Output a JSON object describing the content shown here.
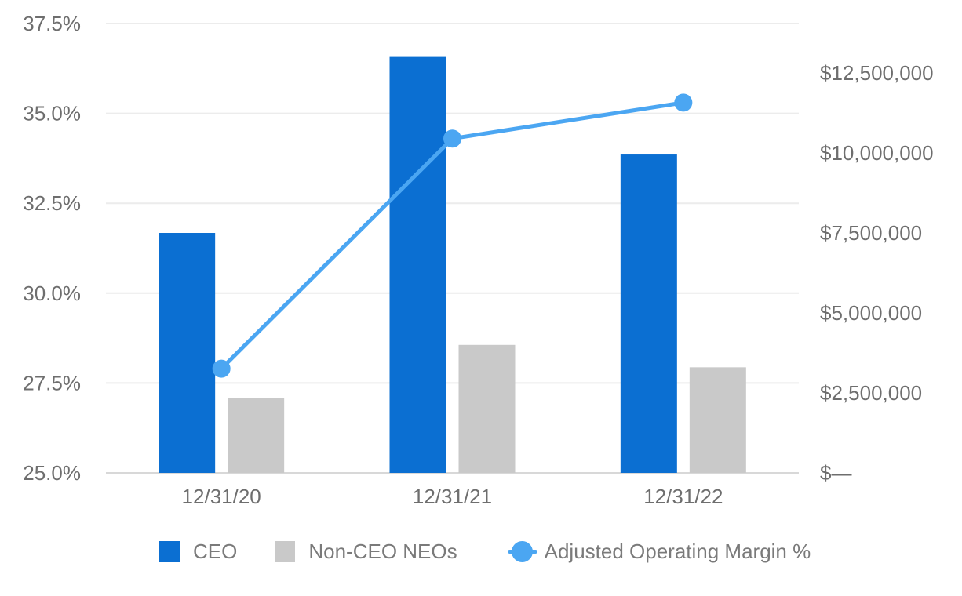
{
  "chart_data": {
    "type": "bar",
    "subtype": "combo-bar-line-dual-axis",
    "title": "",
    "categories": [
      "12/31/20",
      "12/31/21",
      "12/31/22"
    ],
    "series": [
      {
        "name": "CEO",
        "type": "bar",
        "axis": "right",
        "color": "#0b6fd2",
        "values": [
          7500000,
          13000000,
          9950000
        ]
      },
      {
        "name": "Non-CEO NEOs",
        "type": "bar",
        "axis": "right",
        "color": "#c9c9c9",
        "values": [
          2350000,
          4000000,
          3300000
        ]
      },
      {
        "name": "Adjusted Operating Margin %",
        "type": "line",
        "axis": "left",
        "color": "#4ba6f2",
        "values": [
          27.9,
          34.3,
          35.3
        ]
      }
    ],
    "left_axis": {
      "unit": "%",
      "min": 25,
      "max": 37.5,
      "ticks": [
        {
          "label": "37.5%",
          "value": 37.5
        },
        {
          "label": "35.0%",
          "value": 35.0
        },
        {
          "label": "32.5%",
          "value": 32.5
        },
        {
          "label": "30.0%",
          "value": 30.0
        },
        {
          "label": "27.5%",
          "value": 27.5
        },
        {
          "label": "25.0%",
          "value": 25.0
        }
      ]
    },
    "right_axis": {
      "unit": "USD",
      "min": 0,
      "max": 14044118,
      "ticks": [
        {
          "label": "$12,500,000",
          "value": 12500000
        },
        {
          "label": "$10,000,000",
          "value": 10000000
        },
        {
          "label": "$7,500,000",
          "value": 7500000
        },
        {
          "label": "$5,000,000",
          "value": 5000000
        },
        {
          "label": "$2,500,000",
          "value": 2500000
        },
        {
          "label": "$—",
          "value": 0
        }
      ]
    },
    "grid": true,
    "legend_position": "bottom",
    "colors": {
      "gridline": "#ececec",
      "baseline": "#d8d8d8",
      "tick_text": "#6e6e6e",
      "legend_text": "#7a7a7a"
    }
  }
}
